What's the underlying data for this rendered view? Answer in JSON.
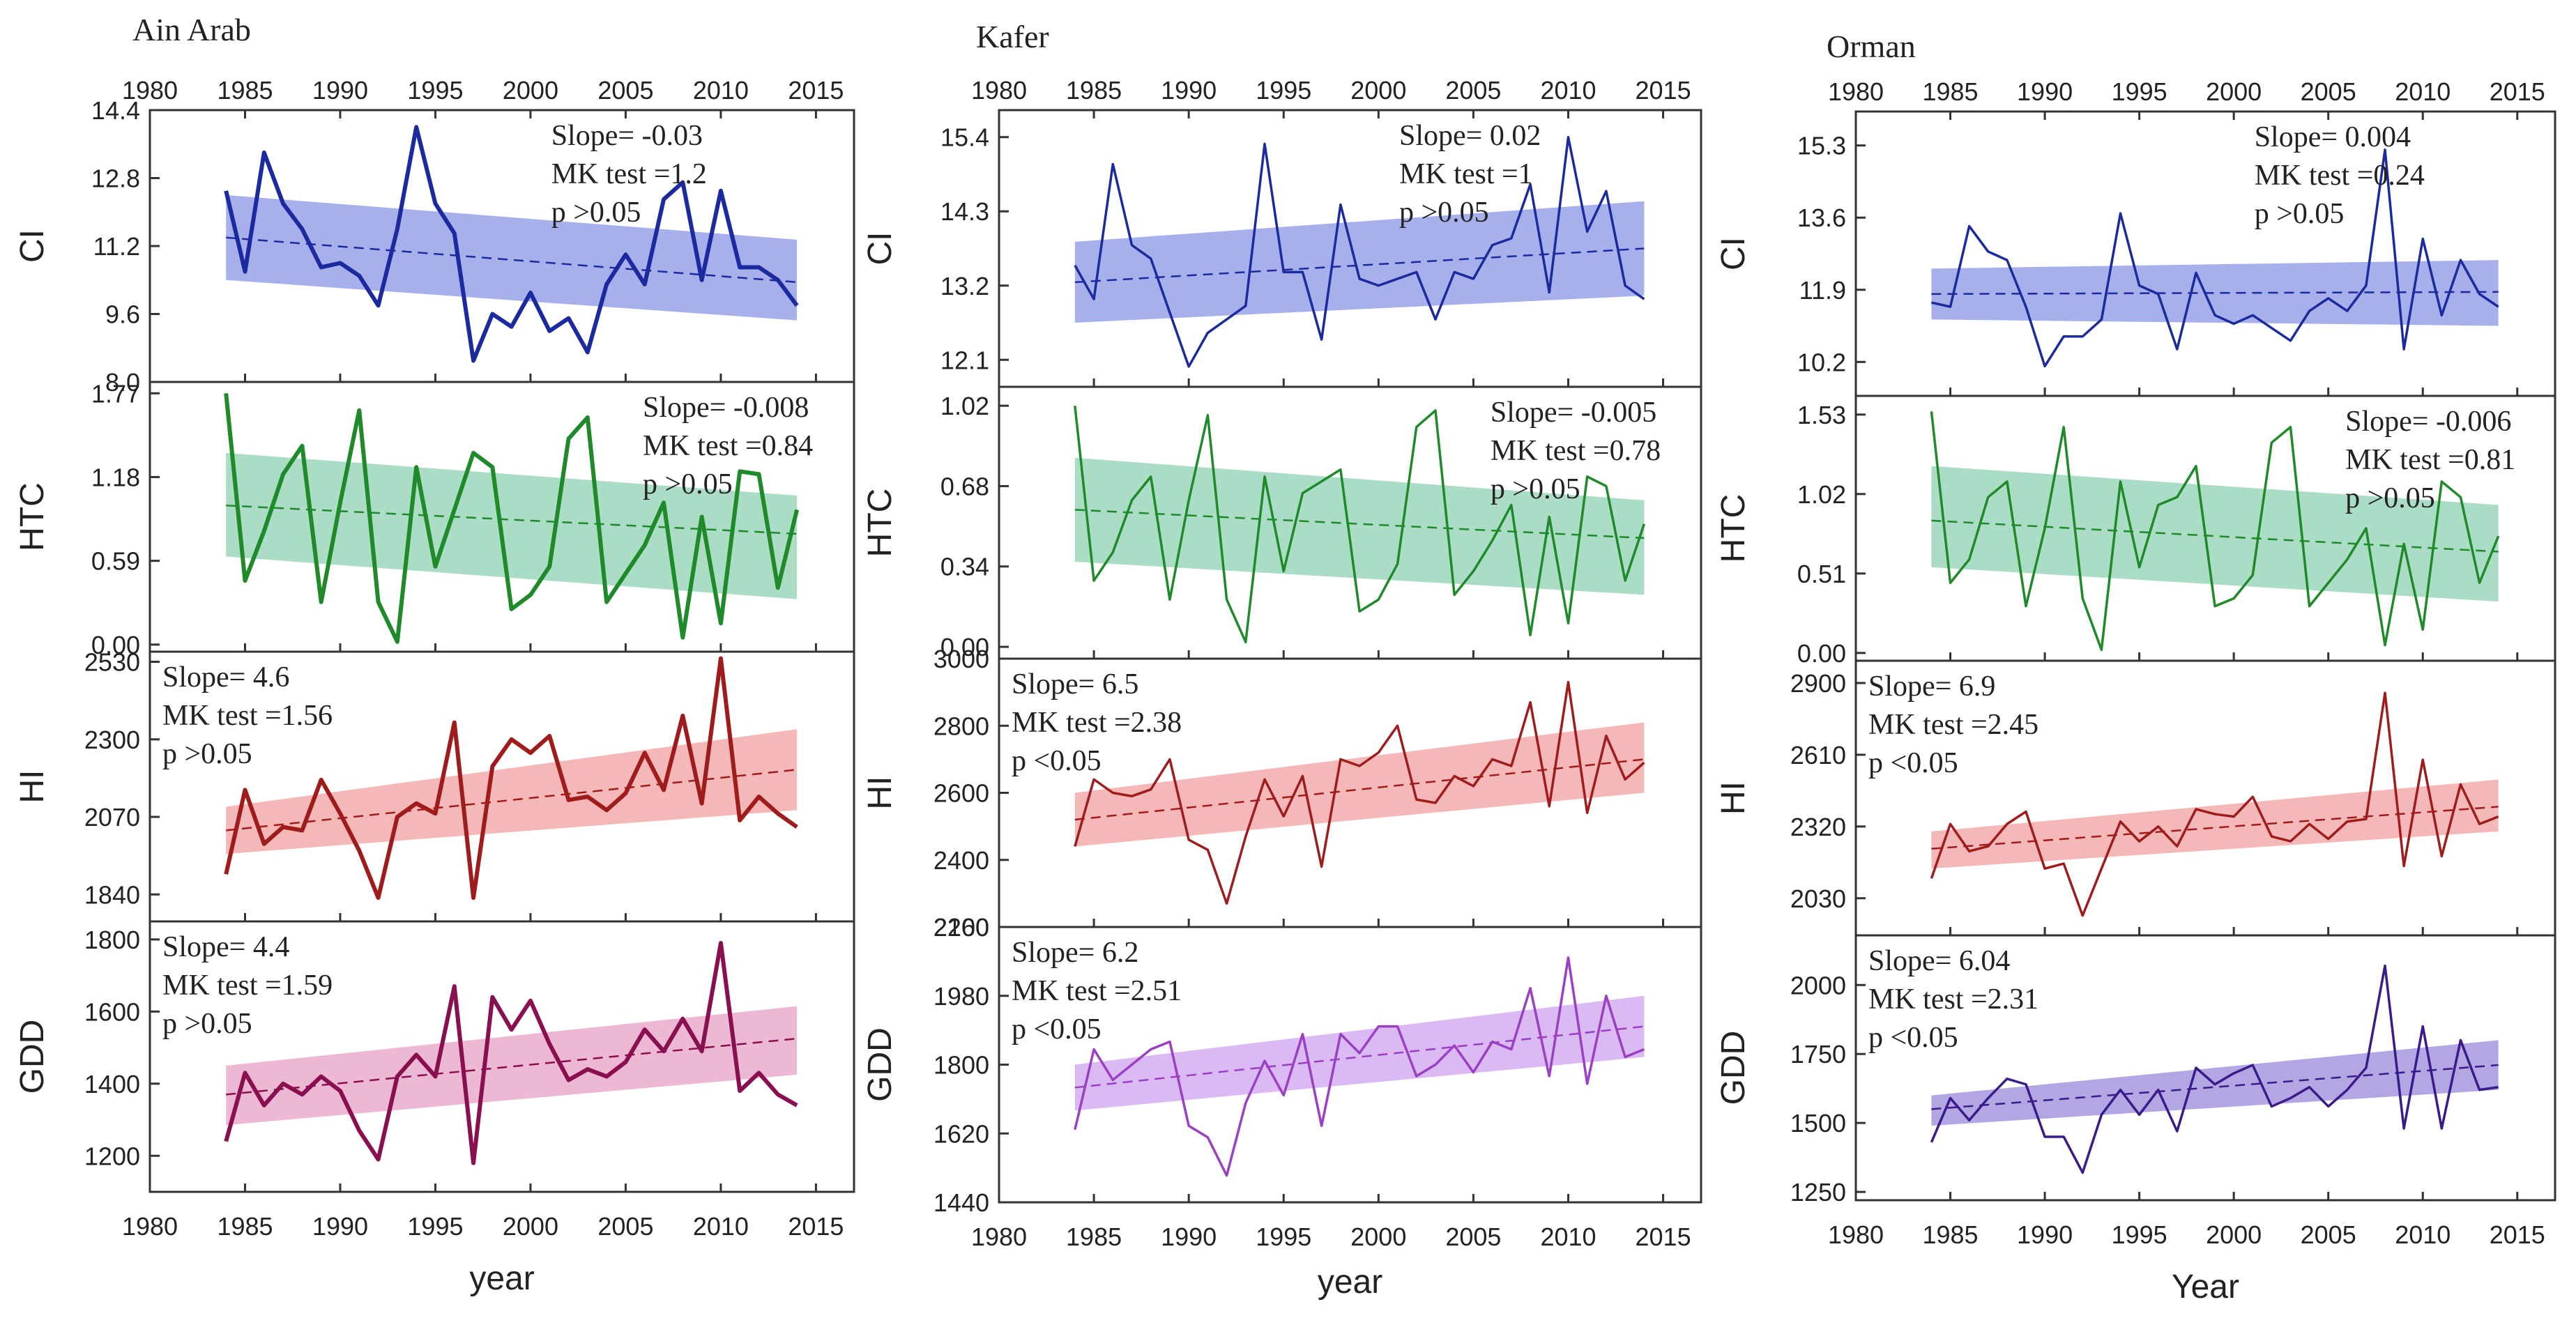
{
  "years": [
    1984,
    1985,
    1986,
    1987,
    1988,
    1989,
    1990,
    1991,
    1992,
    1993,
    1994,
    1995,
    1996,
    1997,
    1998,
    1999,
    2000,
    2001,
    2002,
    2003,
    2004,
    2005,
    2006,
    2007,
    2008,
    2009,
    2010,
    2011,
    2012,
    2013,
    2014
  ],
  "chart_data": [
    {
      "type": "line",
      "station": "Ain Arab",
      "xlabel": "year",
      "xlim": [
        1980,
        2017
      ],
      "xticks": [
        1980,
        1985,
        1990,
        1995,
        2000,
        2005,
        2010,
        2015
      ],
      "panels": [
        {
          "ylabel": "CI",
          "ylim": [
            8.0,
            14.4
          ],
          "yticks": [
            "8.0",
            "9.6",
            "11.2",
            "12.8",
            "14.4"
          ],
          "color": "#1b2a9e",
          "band_color": "#8a96e3",
          "values": [
            12.5,
            10.6,
            13.4,
            12.2,
            11.6,
            10.7,
            10.8,
            10.5,
            9.8,
            11.6,
            14.0,
            12.2,
            11.5,
            8.5,
            9.6,
            9.3,
            10.1,
            9.2,
            9.5,
            8.7,
            10.3,
            11.0,
            10.3,
            12.3,
            12.7,
            10.4,
            12.5,
            10.7,
            10.7,
            10.4,
            9.8
          ],
          "trend": [
            11.4,
            10.35
          ],
          "band_upper": [
            12.4,
            11.35
          ],
          "band_lower": [
            10.4,
            9.45
          ],
          "stats": {
            "slope": "Slope= -0.03",
            "mk": "MK test =1.2",
            "p": "p >0.05"
          }
        },
        {
          "ylabel": "HTC",
          "ylim": [
            -0.05,
            1.85
          ],
          "yticks": [
            "0.00",
            "0.59",
            "1.18",
            "1.77"
          ],
          "color": "#1f8a2a",
          "band_color": "#8fd0b3",
          "values": [
            1.77,
            0.45,
            0.8,
            1.2,
            1.4,
            0.3,
            1.0,
            1.65,
            0.3,
            0.02,
            1.25,
            0.55,
            0.95,
            1.35,
            1.25,
            0.25,
            0.35,
            0.55,
            1.45,
            1.6,
            0.3,
            0.5,
            0.7,
            1.0,
            0.05,
            0.9,
            0.15,
            1.22,
            1.2,
            0.4,
            0.95
          ],
          "trend": [
            0.98,
            0.78
          ],
          "band_upper": [
            1.35,
            1.05
          ],
          "band_lower": [
            0.62,
            0.32
          ],
          "stats": {
            "slope": "Slope= -0.008",
            "mk": "MK test =0.84",
            "p": "p >0.05"
          }
        },
        {
          "ylabel": "HI",
          "ylim": [
            1760,
            2560
          ],
          "yticks": [
            "1840",
            "2070",
            "2300",
            "2530"
          ],
          "color": "#a01c1c",
          "band_color": "#f0a0a0",
          "values": [
            1900,
            2150,
            1990,
            2040,
            2030,
            2180,
            2080,
            1970,
            1830,
            2070,
            2110,
            2080,
            2350,
            1830,
            2220,
            2300,
            2260,
            2310,
            2120,
            2130,
            2090,
            2140,
            2260,
            2150,
            2370,
            2110,
            2540,
            2060,
            2130,
            2080,
            2040
          ],
          "trend": [
            2030,
            2210
          ],
          "band_upper": [
            2100,
            2330
          ],
          "band_lower": [
            1960,
            2090
          ],
          "stats": {
            "slope": "Slope= 4.6",
            "mk": "MK test =1.56",
            "p": "p >0.05"
          }
        },
        {
          "ylabel": "GDD",
          "ylim": [
            1100,
            1850
          ],
          "yticks": [
            "1200",
            "1400",
            "1600",
            "1800"
          ],
          "color": "#8a0f50",
          "band_color": "#e7a0c4",
          "values": [
            1240,
            1430,
            1340,
            1400,
            1370,
            1420,
            1380,
            1270,
            1190,
            1420,
            1480,
            1420,
            1670,
            1180,
            1640,
            1550,
            1630,
            1510,
            1410,
            1440,
            1420,
            1460,
            1550,
            1490,
            1580,
            1490,
            1790,
            1380,
            1430,
            1370,
            1340
          ],
          "trend": [
            1370,
            1525
          ],
          "band_upper": [
            1450,
            1615
          ],
          "band_lower": [
            1285,
            1425
          ],
          "stats": {
            "slope": "Slope= 4.4",
            "mk": "MK test =1.59",
            "p": "p >0.05"
          }
        }
      ]
    },
    {
      "type": "line",
      "station": "Kafer",
      "xlabel": "year",
      "xlim": [
        1980,
        2017
      ],
      "xticks": [
        1980,
        1985,
        1990,
        1995,
        2000,
        2005,
        2010,
        2015
      ],
      "panels": [
        {
          "ylabel": "CI",
          "ylim": [
            11.7,
            15.8
          ],
          "yticks": [
            "12.1",
            "13.2",
            "14.3",
            "15.4"
          ],
          "color": "#1b2a9e",
          "band_color": "#8a96e3",
          "values": [
            13.5,
            13.0,
            15.0,
            13.8,
            13.6,
            12.8,
            12.0,
            12.5,
            12.7,
            12.9,
            15.3,
            13.4,
            13.4,
            12.4,
            14.4,
            13.3,
            13.2,
            13.3,
            13.4,
            12.7,
            13.4,
            13.3,
            13.8,
            13.9,
            14.7,
            13.1,
            15.4,
            14.0,
            14.6,
            13.2,
            13.0
          ],
          "trend": [
            13.25,
            13.75
          ],
          "band_upper": [
            13.85,
            14.45
          ],
          "band_lower": [
            12.65,
            13.05
          ],
          "stats": {
            "slope": "Slope= 0.02",
            "mk": "MK test =1",
            "p": "p >0.05"
          }
        },
        {
          "ylabel": "HTC",
          "ylim": [
            -0.05,
            1.1
          ],
          "yticks": [
            "0.00",
            "0.34",
            "0.68",
            "1.02"
          ],
          "color": "#1f8a2a",
          "band_color": "#8fd0b3",
          "values": [
            1.02,
            0.28,
            0.4,
            0.62,
            0.72,
            0.2,
            0.62,
            0.98,
            0.2,
            0.02,
            0.72,
            0.32,
            0.65,
            0.7,
            0.75,
            0.15,
            0.2,
            0.35,
            0.93,
            1.0,
            0.22,
            0.32,
            0.45,
            0.6,
            0.05,
            0.55,
            0.1,
            0.72,
            0.68,
            0.28,
            0.52
          ],
          "trend": [
            0.58,
            0.46
          ],
          "band_upper": [
            0.8,
            0.62
          ],
          "band_lower": [
            0.36,
            0.22
          ],
          "stats": {
            "slope": "Slope= -0.005",
            "mk": "MK test =0.78",
            "p": "p >0.05"
          }
        },
        {
          "ylabel": "HI",
          "ylim": [
            2200,
            3000
          ],
          "yticks": [
            "2200",
            "2400",
            "2600",
            "2800",
            "3000"
          ],
          "color": "#a01c1c",
          "band_color": "#f0a0a0",
          "values": [
            2440,
            2640,
            2600,
            2590,
            2610,
            2700,
            2460,
            2430,
            2270,
            2470,
            2640,
            2530,
            2650,
            2380,
            2700,
            2680,
            2720,
            2800,
            2580,
            2570,
            2650,
            2620,
            2700,
            2680,
            2870,
            2560,
            2930,
            2540,
            2770,
            2640,
            2690
          ],
          "trend": [
            2520,
            2700
          ],
          "band_upper": [
            2600,
            2810
          ],
          "band_lower": [
            2440,
            2600
          ],
          "stats": {
            "slope": "Slope= 6.5",
            "mk": "MK test =2.38",
            "p": "p <0.05"
          }
        },
        {
          "ylabel": "GDD",
          "ylim": [
            1440,
            2160
          ],
          "yticks": [
            "1440",
            "1620",
            "1800",
            "1980",
            "2160"
          ],
          "color": "#9b3fc4",
          "band_color": "#cfa2ee",
          "values": [
            1630,
            1840,
            1760,
            1800,
            1840,
            1860,
            1640,
            1610,
            1510,
            1700,
            1810,
            1720,
            1880,
            1640,
            1880,
            1830,
            1900,
            1900,
            1770,
            1800,
            1850,
            1780,
            1860,
            1840,
            2000,
            1770,
            2080,
            1750,
            1980,
            1820,
            1840
          ],
          "trend": [
            1740,
            1900
          ],
          "band_upper": [
            1800,
            1980
          ],
          "band_lower": [
            1680,
            1820
          ],
          "stats": {
            "slope": "Slope= 6.2",
            "mk": "MK test =2.51",
            "p": "p <0.05"
          }
        }
      ]
    },
    {
      "type": "line",
      "station": "Orman",
      "xlabel": "Year",
      "xlim": [
        1980,
        2017
      ],
      "xticks": [
        1980,
        1985,
        1990,
        1995,
        2000,
        2005,
        2010,
        2015
      ],
      "panels": [
        {
          "ylabel": "CI",
          "ylim": [
            9.4,
            16.1
          ],
          "yticks": [
            "10.2",
            "11.9",
            "13.6",
            "15.3"
          ],
          "color": "#1b2a9e",
          "band_color": "#8a96e3",
          "values": [
            11.6,
            11.5,
            13.4,
            12.8,
            12.6,
            11.5,
            10.1,
            10.8,
            10.8,
            11.2,
            13.7,
            12.0,
            11.8,
            10.5,
            12.3,
            11.3,
            11.1,
            11.3,
            11.0,
            10.7,
            11.4,
            11.7,
            11.4,
            12.0,
            15.2,
            10.5,
            13.1,
            11.3,
            12.6,
            11.8,
            11.5
          ],
          "trend": [
            11.8,
            11.85
          ],
          "band_upper": [
            12.4,
            12.6
          ],
          "band_lower": [
            11.2,
            11.05
          ],
          "stats": {
            "slope": "Slope= 0.004",
            "mk": "MK test =0.24",
            "p": "p >0.05"
          }
        },
        {
          "ylabel": "HTC",
          "ylim": [
            -0.05,
            1.65
          ],
          "yticks": [
            "0.00",
            "0.51",
            "1.02",
            "1.53"
          ],
          "color": "#1f8a2a",
          "band_color": "#8fd0b3",
          "values": [
            1.55,
            0.45,
            0.6,
            1.0,
            1.1,
            0.3,
            0.8,
            1.45,
            0.35,
            0.02,
            1.1,
            0.55,
            0.95,
            1.0,
            1.2,
            0.3,
            0.35,
            0.5,
            1.35,
            1.45,
            0.3,
            0.45,
            0.6,
            0.8,
            0.05,
            0.7,
            0.15,
            1.1,
            1.0,
            0.45,
            0.75
          ],
          "trend": [
            0.85,
            0.65
          ],
          "band_upper": [
            1.2,
            0.95
          ],
          "band_lower": [
            0.55,
            0.33
          ],
          "stats": {
            "slope": "Slope= -0.006",
            "mk": "MK test =0.81",
            "p": "p >0.05"
          }
        },
        {
          "ylabel": "HI",
          "ylim": [
            1880,
            2990
          ],
          "yticks": [
            "2030",
            "2320",
            "2610",
            "2900"
          ],
          "color": "#a01c1c",
          "band_color": "#f0a0a0",
          "values": [
            2110,
            2330,
            2220,
            2240,
            2330,
            2380,
            2150,
            2170,
            1960,
            2150,
            2340,
            2260,
            2320,
            2240,
            2390,
            2370,
            2360,
            2440,
            2280,
            2260,
            2330,
            2270,
            2340,
            2350,
            2860,
            2160,
            2590,
            2200,
            2490,
            2330,
            2360
          ],
          "trend": [
            2230,
            2400
          ],
          "band_upper": [
            2300,
            2510
          ],
          "band_lower": [
            2150,
            2300
          ],
          "stats": {
            "slope": "Slope= 6.9",
            "mk": "MK test =2.45",
            "p": "p <0.05"
          }
        },
        {
          "ylabel": "GDD",
          "ylim": [
            1220,
            2180
          ],
          "yticks": [
            "1250",
            "1500",
            "1750",
            "2000"
          ],
          "color": "#3b1a8c",
          "band_color": "#9b88d8",
          "values": [
            1430,
            1590,
            1510,
            1590,
            1660,
            1640,
            1450,
            1450,
            1320,
            1530,
            1620,
            1530,
            1620,
            1470,
            1700,
            1640,
            1680,
            1710,
            1560,
            1590,
            1630,
            1560,
            1620,
            1700,
            2070,
            1480,
            1850,
            1480,
            1800,
            1620,
            1630
          ],
          "trend": [
            1550,
            1710
          ],
          "band_upper": [
            1600,
            1800
          ],
          "band_lower": [
            1490,
            1620
          ],
          "stats": {
            "slope": "Slope= 6.04",
            "mk": "MK test =2.31",
            "p": "p <0.05"
          }
        }
      ]
    }
  ]
}
